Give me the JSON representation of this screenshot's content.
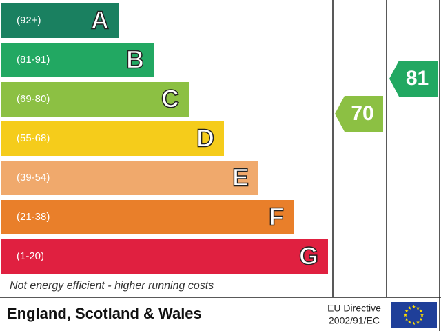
{
  "bands": [
    {
      "range": "(92+)",
      "letter": "A"
    },
    {
      "range": "(81-91)",
      "letter": "B"
    },
    {
      "range": "(69-80)",
      "letter": "C"
    },
    {
      "range": "(55-68)",
      "letter": "D"
    },
    {
      "range": "(39-54)",
      "letter": "E"
    },
    {
      "range": "(21-38)",
      "letter": "F"
    },
    {
      "range": "(1-20)",
      "letter": "G"
    }
  ],
  "current": 70,
  "potential": 81,
  "note": "Not energy efficient - higher running costs",
  "footer": {
    "region": "England, Scotland & Wales",
    "directive": "EU Directive",
    "directive_code": "2002/91/EC"
  }
}
